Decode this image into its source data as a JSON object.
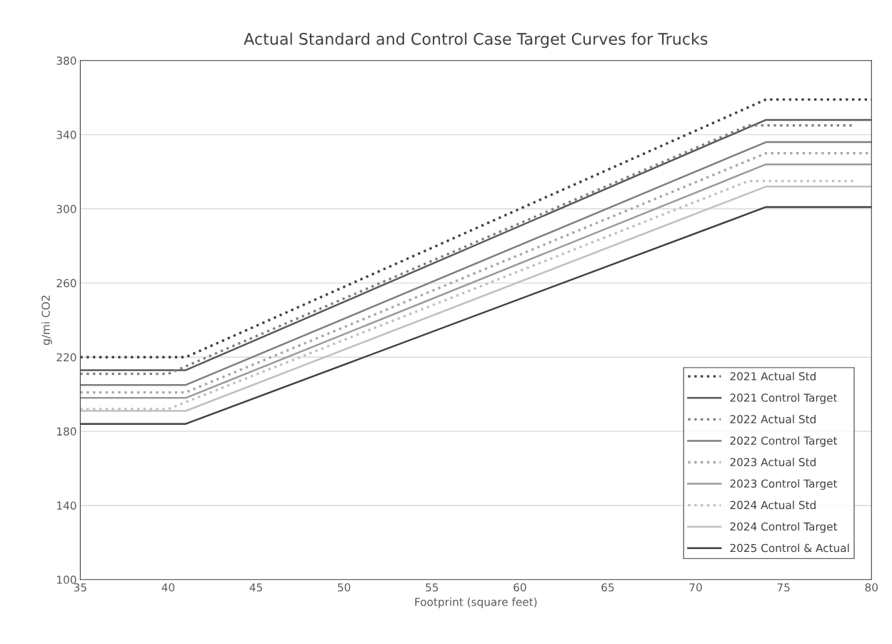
{
  "chart_data": {
    "type": "line",
    "title": "Actual Standard and Control Case Target Curves for Trucks",
    "xlabel": "Footprint (square feet)",
    "ylabel": "g/mi CO2",
    "xlim": [
      35,
      80
    ],
    "xticks": [
      35,
      40,
      45,
      50,
      55,
      60,
      65,
      70,
      75,
      80
    ],
    "ylim": [
      100,
      380
    ],
    "yticks": [
      100,
      140,
      180,
      220,
      260,
      300,
      340,
      380
    ],
    "grid": "y",
    "legend": "right",
    "marker": "none",
    "series": [
      {
        "name": "2021 Actual Std",
        "color": "#404040",
        "line_style": "dotted",
        "x": [
          35,
          41,
          74,
          80
        ],
        "values": [
          220,
          220,
          359,
          359
        ]
      },
      {
        "name": "2021 Control Target",
        "color": "#595959",
        "line_style": "solid",
        "x": [
          35,
          41,
          74,
          80
        ],
        "values": [
          213,
          213,
          348,
          348
        ]
      },
      {
        "name": "2022 Actual Std",
        "color": "#7f7f7f",
        "line_style": "dotted",
        "x": [
          35,
          40,
          73,
          79
        ],
        "values": [
          211,
          211,
          345,
          345
        ]
      },
      {
        "name": "2022 Control Target",
        "color": "#7f7f7f",
        "line_style": "solid",
        "x": [
          35,
          41,
          74,
          80
        ],
        "values": [
          205,
          205,
          336,
          336
        ]
      },
      {
        "name": "2023 Actual Std",
        "color": "#a6a6a6",
        "line_style": "dotted",
        "x": [
          35,
          41,
          74,
          80
        ],
        "values": [
          201,
          201,
          330,
          330
        ]
      },
      {
        "name": "2023 Control Target",
        "color": "#999999",
        "line_style": "solid",
        "x": [
          35,
          41,
          74,
          80
        ],
        "values": [
          198,
          198,
          324,
          324
        ]
      },
      {
        "name": "2024 Actual Std",
        "color": "#bfbfbf",
        "line_style": "dotted",
        "x": [
          35,
          40,
          73,
          79
        ],
        "values": [
          192,
          192,
          315,
          315
        ]
      },
      {
        "name": "2024 Control Target",
        "color": "#c0c0c0",
        "line_style": "solid",
        "x": [
          35,
          41,
          74,
          80
        ],
        "values": [
          191,
          191,
          312,
          312
        ]
      },
      {
        "name": "2025 Control & Actual",
        "color": "#404040",
        "line_style": "solid",
        "x": [
          35,
          41,
          74,
          80
        ],
        "values": [
          184,
          184,
          301,
          301
        ]
      }
    ]
  }
}
